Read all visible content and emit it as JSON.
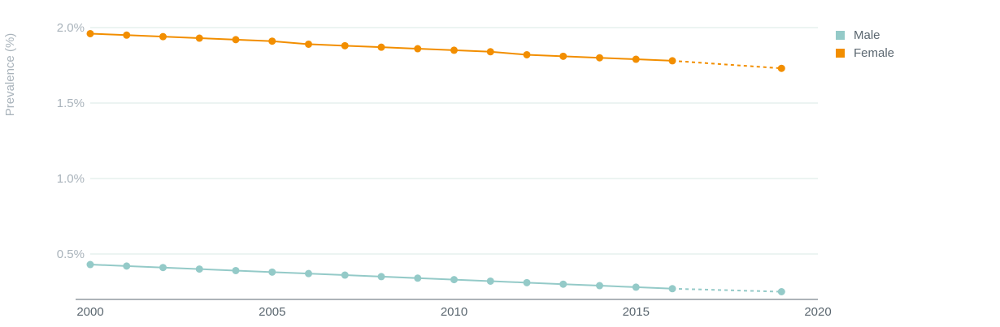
{
  "chart_data": {
    "type": "line",
    "ylabel": "Prevalence (%)",
    "xlim": [
      2000,
      2020
    ],
    "ylim": [
      0.2,
      2.0
    ],
    "x_ticks": [
      "2000",
      "2005",
      "2010",
      "2015",
      "2020"
    ],
    "y_ticks": [
      "0.5%",
      "1.0%",
      "1.5%",
      "2.0%"
    ],
    "grid": "horizontal",
    "legend_position": "right",
    "series": [
      {
        "name": "Male",
        "color": "#94cac8",
        "x": [
          2000,
          2001,
          2002,
          2003,
          2004,
          2005,
          2006,
          2007,
          2008,
          2009,
          2010,
          2011,
          2012,
          2013,
          2014,
          2015,
          2016,
          2019
        ],
        "values": [
          0.43,
          0.42,
          0.41,
          0.4,
          0.39,
          0.38,
          0.37,
          0.36,
          0.35,
          0.34,
          0.33,
          0.32,
          0.31,
          0.3,
          0.29,
          0.28,
          0.27,
          0.25
        ],
        "projected_from_index": 16
      },
      {
        "name": "Female",
        "color": "#f28e00",
        "x": [
          2000,
          2001,
          2002,
          2003,
          2004,
          2005,
          2006,
          2007,
          2008,
          2009,
          2010,
          2011,
          2012,
          2013,
          2014,
          2015,
          2016,
          2019
        ],
        "values": [
          1.96,
          1.95,
          1.94,
          1.93,
          1.92,
          1.91,
          1.89,
          1.88,
          1.87,
          1.86,
          1.85,
          1.84,
          1.82,
          1.81,
          1.8,
          1.79,
          1.78,
          1.73
        ],
        "projected_from_index": 16
      }
    ]
  }
}
